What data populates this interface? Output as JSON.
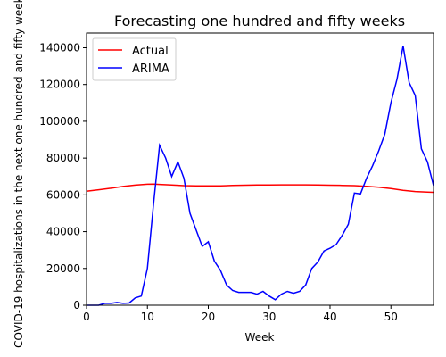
{
  "chart_data": {
    "type": "line",
    "title": "Forecasting one hundred and fifty weeks",
    "xlabel": "Week",
    "ylabel": "COVID-19 hospitalizations in the next one hundred and fifty weeks",
    "xlim": [
      0,
      57
    ],
    "ylim": [
      0,
      148000
    ],
    "x_ticks": [
      0,
      10,
      20,
      30,
      40,
      50
    ],
    "y_ticks": [
      0,
      20000,
      40000,
      60000,
      80000,
      100000,
      120000,
      140000
    ],
    "legend_position": "top-left",
    "grid": false,
    "series": [
      {
        "name": "Actual",
        "color": "#ff0000",
        "x": [
          0,
          2,
          4,
          6,
          8,
          10,
          11,
          12,
          14,
          16,
          18,
          20,
          22,
          24,
          26,
          28,
          30,
          32,
          34,
          36,
          38,
          40,
          42,
          44,
          46,
          48,
          50,
          52,
          54,
          56,
          57
        ],
        "y": [
          62000,
          62800,
          63600,
          64600,
          65300,
          65800,
          65900,
          65700,
          65400,
          65000,
          64900,
          64900,
          64950,
          65100,
          65250,
          65350,
          65400,
          65450,
          65450,
          65450,
          65350,
          65250,
          65150,
          65000,
          64700,
          64200,
          63400,
          62500,
          61800,
          61500,
          61400
        ]
      },
      {
        "name": "ARIMA",
        "color": "#0000ff",
        "x": [
          0,
          1,
          2,
          3,
          4,
          5,
          6,
          7,
          8,
          9,
          10,
          11,
          12,
          13,
          14,
          15,
          16,
          17,
          18,
          19,
          20,
          21,
          22,
          23,
          24,
          25,
          26,
          27,
          28,
          29,
          30,
          31,
          32,
          33,
          34,
          35,
          36,
          37,
          38,
          39,
          40,
          41,
          42,
          43,
          44,
          45,
          46,
          47,
          48,
          49,
          50,
          51,
          52,
          53,
          54,
          55,
          56,
          57
        ],
        "y": [
          0,
          0,
          0,
          1000,
          1000,
          1500,
          1000,
          1200,
          4000,
          5000,
          20000,
          55000,
          87000,
          80000,
          70000,
          78000,
          69000,
          50000,
          41000,
          32000,
          34500,
          24000,
          19000,
          11000,
          8000,
          7000,
          7000,
          7000,
          6000,
          7500,
          5000,
          3000,
          6000,
          7500,
          6500,
          7500,
          11000,
          20000,
          23500,
          29500,
          31000,
          33000,
          38000,
          44000,
          61000,
          60500,
          69000,
          76000,
          84000,
          93000,
          110000,
          123000,
          141000,
          121000,
          114000,
          85000,
          78000,
          65000
        ]
      }
    ]
  }
}
